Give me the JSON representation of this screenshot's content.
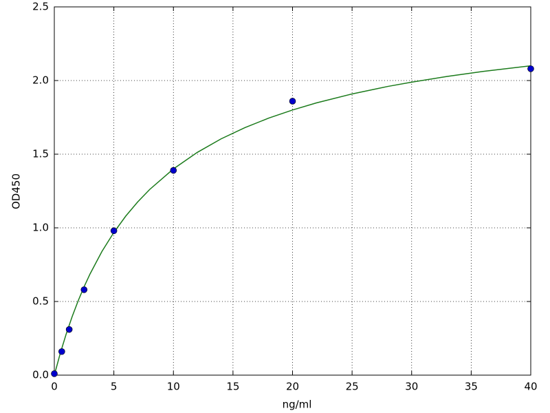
{
  "chart_data": {
    "type": "scatter",
    "xlabel": "ng/ml",
    "ylabel": "OD450",
    "xlim": [
      0,
      40
    ],
    "ylim": [
      0,
      2.5
    ],
    "xticks": [
      0,
      5,
      10,
      15,
      20,
      25,
      30,
      35,
      40
    ],
    "yticks": [
      {
        "value": 0,
        "label": "0.0"
      },
      0.5,
      {
        "value": 1,
        "label": "1.0"
      },
      1.5,
      {
        "value": 2,
        "label": "2.0"
      },
      2.5
    ],
    "grid": true,
    "series": [
      {
        "type": "scatter",
        "color": "#0000cc",
        "x": [
          0,
          0.625,
          1.25,
          2.5,
          5,
          10,
          20,
          40
        ],
        "values": [
          0.01,
          0.16,
          0.31,
          0.58,
          0.98,
          1.39,
          1.86,
          2.08
        ]
      },
      {
        "type": "line",
        "color": "#1a7a1a",
        "x": [
          0,
          0.5,
          1,
          1.5,
          2,
          2.5,
          3,
          4,
          5,
          6,
          7,
          8,
          10,
          12,
          14,
          16,
          18,
          20,
          22,
          25,
          28,
          30,
          33,
          36,
          40
        ],
        "values": [
          0,
          0.148,
          0.28,
          0.398,
          0.504,
          0.6,
          0.687,
          0.84,
          0.969,
          1.08,
          1.176,
          1.26,
          1.4,
          1.512,
          1.604,
          1.68,
          1.745,
          1.8,
          1.848,
          1.909,
          1.96,
          1.989,
          2.028,
          2.062,
          2.1
        ]
      }
    ]
  }
}
